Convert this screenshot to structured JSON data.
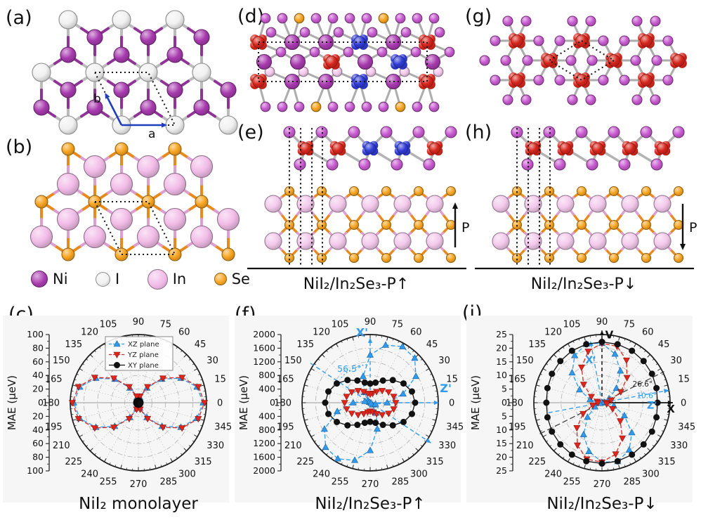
{
  "panels": {
    "a": {
      "label": "(a)",
      "lattice_vector_a": "a",
      "lattice_vector_b": "b"
    },
    "b": {
      "label": "(b)"
    },
    "c": {
      "label": "(c)",
      "caption": "NiI₂ monolayer"
    },
    "d": {
      "label": "(d)"
    },
    "e": {
      "label": "(e)",
      "caption": "NiI₂/In₂Se₃-P↑",
      "polarization_label": "P"
    },
    "f": {
      "label": "(f)",
      "caption": "NiI₂/In₂Se₃-P↑"
    },
    "g": {
      "label": "(g)"
    },
    "h": {
      "label": "(h)",
      "caption": "NiI₂/In₂Se₃-P↓",
      "polarization_label": "P"
    },
    "i": {
      "label": "(i)",
      "caption": "NiI₂/In₂Se₃-P↓"
    }
  },
  "atom_legend": [
    {
      "name": "Ni",
      "color": "#A73AAE",
      "diameter": 22
    },
    {
      "name": "I",
      "color": "#F1F1F1",
      "diameter": 19
    },
    {
      "name": "In",
      "color": "#F2BCE8",
      "diameter": 27
    },
    {
      "name": "Se",
      "color": "#F7A420",
      "diameter": 16
    }
  ],
  "palette": {
    "Ni": "#A73AAE",
    "I": "#F1F1F1",
    "In": "#F2BCE8",
    "Se": "#F7A420",
    "NiRed": "#D6251C",
    "NiBlue": "#2F3BD4",
    "IMag": "#C75ACF",
    "InSide": "#F3C9EC"
  },
  "style_colors": {
    "bond_gray": "#ACACAC",
    "bond_orange": "#E8891B",
    "bond_pink": "#DC9ED2",
    "bond_ni": "#8F3496",
    "cell_dots": "#141414",
    "lattice_arrow": "#1E3EBE",
    "series_blue": "#2E9BF0",
    "series_red": "#E1251B",
    "series_black": "#111111"
  },
  "chart_data": [
    {
      "id": "c",
      "type": "polar-line",
      "title": "NiI₂ monolayer",
      "radial_axis_label": "MAE (μeV)",
      "rmax": 100,
      "rticks": [
        0,
        20,
        40,
        60,
        80,
        100
      ],
      "angle_step_deg": 15,
      "angle_labels": [
        "0",
        "15",
        "30",
        "45",
        "60",
        "75",
        "90",
        "105",
        "120",
        "135",
        "150",
        "165",
        "180",
        "195",
        "210",
        "225",
        "240",
        "255",
        "270",
        "285",
        "300",
        "315",
        "330",
        "345"
      ],
      "legend": {
        "show": true,
        "items": [
          "XZ plane",
          "YZ plane",
          "XY plane"
        ]
      },
      "series": [
        {
          "name": "XZ plane",
          "color": "#2E9BF0",
          "marker": "triangle-up",
          "dash": "6 3",
          "values": [
            95,
            89,
            72,
            49,
            25,
            8,
            2,
            8,
            25,
            49,
            72,
            89,
            95,
            89,
            72,
            49,
            25,
            8,
            2,
            8,
            25,
            49,
            72,
            89
          ]
        },
        {
          "name": "YZ plane",
          "color": "#E1251B",
          "marker": "triangle-down",
          "dash": "6 3",
          "values": [
            97,
            91,
            74,
            51,
            27,
            10,
            4,
            10,
            27,
            51,
            74,
            91,
            97,
            91,
            74,
            51,
            27,
            10,
            4,
            10,
            27,
            51,
            74,
            91
          ]
        },
        {
          "name": "XY plane",
          "color": "#111111",
          "marker": "circle",
          "dash": "",
          "values": [
            3,
            3,
            3,
            3,
            3,
            3,
            3,
            3,
            3,
            3,
            3,
            3,
            3,
            3,
            3,
            3,
            3,
            3,
            3,
            3,
            3,
            3,
            3,
            3
          ]
        }
      ],
      "annotations": []
    },
    {
      "id": "f",
      "type": "polar-line",
      "title": "NiI₂/In₂Se₃-P↑",
      "radial_axis_label": "MAE (μeV)",
      "rmax": 2000,
      "rticks": [
        0,
        400,
        800,
        1200,
        1600,
        2000
      ],
      "angle_step_deg": 15,
      "angle_labels": [
        "0",
        "15",
        "30",
        "45",
        "60",
        "75",
        "90",
        "105",
        "120",
        "135",
        "150",
        "165",
        "180",
        "195",
        "210",
        "225",
        "240",
        "255",
        "270",
        "285",
        "300",
        "315",
        "330",
        "345"
      ],
      "legend": {
        "show": false,
        "items": []
      },
      "series": [
        {
          "name": "XZ plane",
          "color": "#2E9BF0",
          "marker": "triangle-up",
          "dash": "6 3",
          "values": [
            500,
            1000,
            1550,
            1850,
            1900,
            1750,
            1400,
            800,
            350,
            90,
            30,
            160,
            500,
            1000,
            1550,
            1850,
            1900,
            1750,
            1400,
            800,
            350,
            90,
            30,
            160
          ]
        },
        {
          "name": "YZ plane",
          "color": "#E1251B",
          "marker": "triangle-down",
          "dash": "6 3",
          "values": [
            750,
            715,
            625,
            500,
            375,
            285,
            250,
            285,
            375,
            500,
            625,
            715,
            750,
            715,
            625,
            500,
            375,
            285,
            250,
            285,
            375,
            500,
            625,
            715
          ]
        },
        {
          "name": "XY plane",
          "color": "#111111",
          "marker": "circle",
          "dash": "",
          "values": [
            1320,
            1270,
            1130,
            940,
            750,
            610,
            560,
            610,
            750,
            940,
            1130,
            1270,
            1320,
            1270,
            1130,
            940,
            750,
            610,
            560,
            610,
            750,
            940,
            1130,
            1270
          ]
        }
      ],
      "annotations": [
        {
          "type": "ray",
          "angle": 90,
          "r_end": 0.95,
          "color": "#2E9BF0",
          "dash": "5 4",
          "arrow": true,
          "width": 1.4
        },
        {
          "type": "through",
          "angle": 326.5,
          "r_end": 1.07,
          "r_start": 1.05,
          "color": "#2E9BF0",
          "dash": "6 4",
          "arrow": true,
          "width": 1.4
        },
        {
          "type": "ray",
          "angle": 0,
          "r_end": 1.01,
          "color": "#2E9BF0",
          "dash": "6 4",
          "arrow": true,
          "width": 1.4
        },
        {
          "type": "arc",
          "a0": 95,
          "a1": 143,
          "r": 0.56,
          "color": "#2E9BF0",
          "dash": "2 3",
          "width": 1.3
        },
        {
          "type": "text",
          "angle": 97,
          "r": 0.98,
          "text": "X'",
          "color": "#2E9BF0",
          "size": 16,
          "bold": true
        },
        {
          "type": "text",
          "angle": 124,
          "r": 0.55,
          "text": "56.5°",
          "color": "#2E9BF0",
          "size": 12.5,
          "bold": false
        },
        {
          "type": "text",
          "angle": 8,
          "r": 1.12,
          "text": "Z'",
          "color": "#2E9BF0",
          "size": 16,
          "bold": true
        }
      ]
    },
    {
      "id": "i",
      "type": "polar-line",
      "title": "NiI₂/In₂Se₃-P↓",
      "radial_axis_label": "MAE (μeV)",
      "rmax": 25,
      "rticks": [
        0,
        5,
        10,
        15,
        20,
        25
      ],
      "angle_step_deg": 15,
      "angle_labels": [
        "0",
        "15",
        "30",
        "45",
        "60",
        "75",
        "90",
        "105",
        "120",
        "135",
        "150",
        "165",
        "180",
        "195",
        "210",
        "225",
        "240",
        "255",
        "270",
        "285",
        "300",
        "315",
        "330",
        "345"
      ],
      "legend": {
        "show": false,
        "items": []
      },
      "series": [
        {
          "name": "XZ plane",
          "color": "#2E9BF0",
          "marker": "triangle-up",
          "dash": "6 3",
          "values": [
            1.2,
            0.8,
            3,
            7.5,
            13.5,
            18.5,
            21.8,
            22.3,
            20,
            15.5,
            9.5,
            4.5,
            1.2,
            0.8,
            3,
            7.5,
            13.5,
            18.5,
            21.8,
            22.3,
            20,
            15.5,
            9.5,
            4.5
          ]
        },
        {
          "name": "YZ plane",
          "color": "#E1251B",
          "marker": "triangle-down",
          "dash": "6 3",
          "values": [
            1.5,
            3.5,
            8,
            13,
            18,
            21.4,
            21.8,
            19.5,
            15,
            9.5,
            4.5,
            1.8,
            1.5,
            3.5,
            8,
            13,
            18,
            21.4,
            21.8,
            19.5,
            15,
            9.5,
            4.5,
            1.8
          ]
        },
        {
          "name": "XY plane",
          "color": "#111111",
          "marker": "circle",
          "dash": "",
          "values": [
            20.4,
            20.7,
            21.2,
            21.6,
            22,
            22.2,
            22.3,
            22.2,
            22,
            21.6,
            21.2,
            20.7,
            20.4,
            20.7,
            21.2,
            21.6,
            22,
            22.2,
            22.3,
            22.2,
            22,
            21.6,
            21.2,
            20.7
          ]
        }
      ],
      "annotations": [
        {
          "type": "ray",
          "angle": 0,
          "r_end": 1.04,
          "color": "#111111",
          "arrow": true,
          "width": 1.7
        },
        {
          "type": "ray",
          "angle": 90,
          "r_end": 1.06,
          "color": "#111111",
          "dash": "5 4",
          "arrow": true,
          "width": 1.5
        },
        {
          "type": "through",
          "angle": 26.6,
          "r_end": 1.02,
          "r_start": 1.02,
          "color": "#333333",
          "dash": "8 4",
          "width": 1.2
        },
        {
          "type": "through",
          "angle": 10.6,
          "r_end": 1.0,
          "r_start": 0.8,
          "color": "#2E9BF0",
          "dash": "6 4",
          "arrow": true,
          "width": 1.3
        },
        {
          "type": "ray",
          "angle": 100.6,
          "r_end": 0.92,
          "color": "#2E9BF0",
          "dash": "6 4",
          "arrow": true,
          "width": 1.3
        },
        {
          "type": "text",
          "angle": -8,
          "r": 1.02,
          "text": "X",
          "color": "#111111",
          "size": 15,
          "bold": true
        },
        {
          "type": "text",
          "angle": 83.5,
          "r": 0.95,
          "text": "V",
          "color": "#111111",
          "size": 15,
          "bold": true
        },
        {
          "type": "text",
          "angle": 21.5,
          "r": 0.64,
          "text": "26.6°",
          "color": "#222222",
          "size": 10.5,
          "bold": false
        },
        {
          "type": "text",
          "angle": 6,
          "r": 0.66,
          "text": "10.6°",
          "color": "#2E9BF0",
          "size": 10.5,
          "bold": false
        },
        {
          "type": "text",
          "angle": -7,
          "r": 0.74,
          "text": "Z'",
          "color": "#2E9BF0",
          "size": 14,
          "bold": true
        },
        {
          "type": "text",
          "angle": 106,
          "r": 0.6,
          "text": "X'",
          "color": "#2E9BF0",
          "size": 14,
          "bold": true
        }
      ]
    }
  ]
}
